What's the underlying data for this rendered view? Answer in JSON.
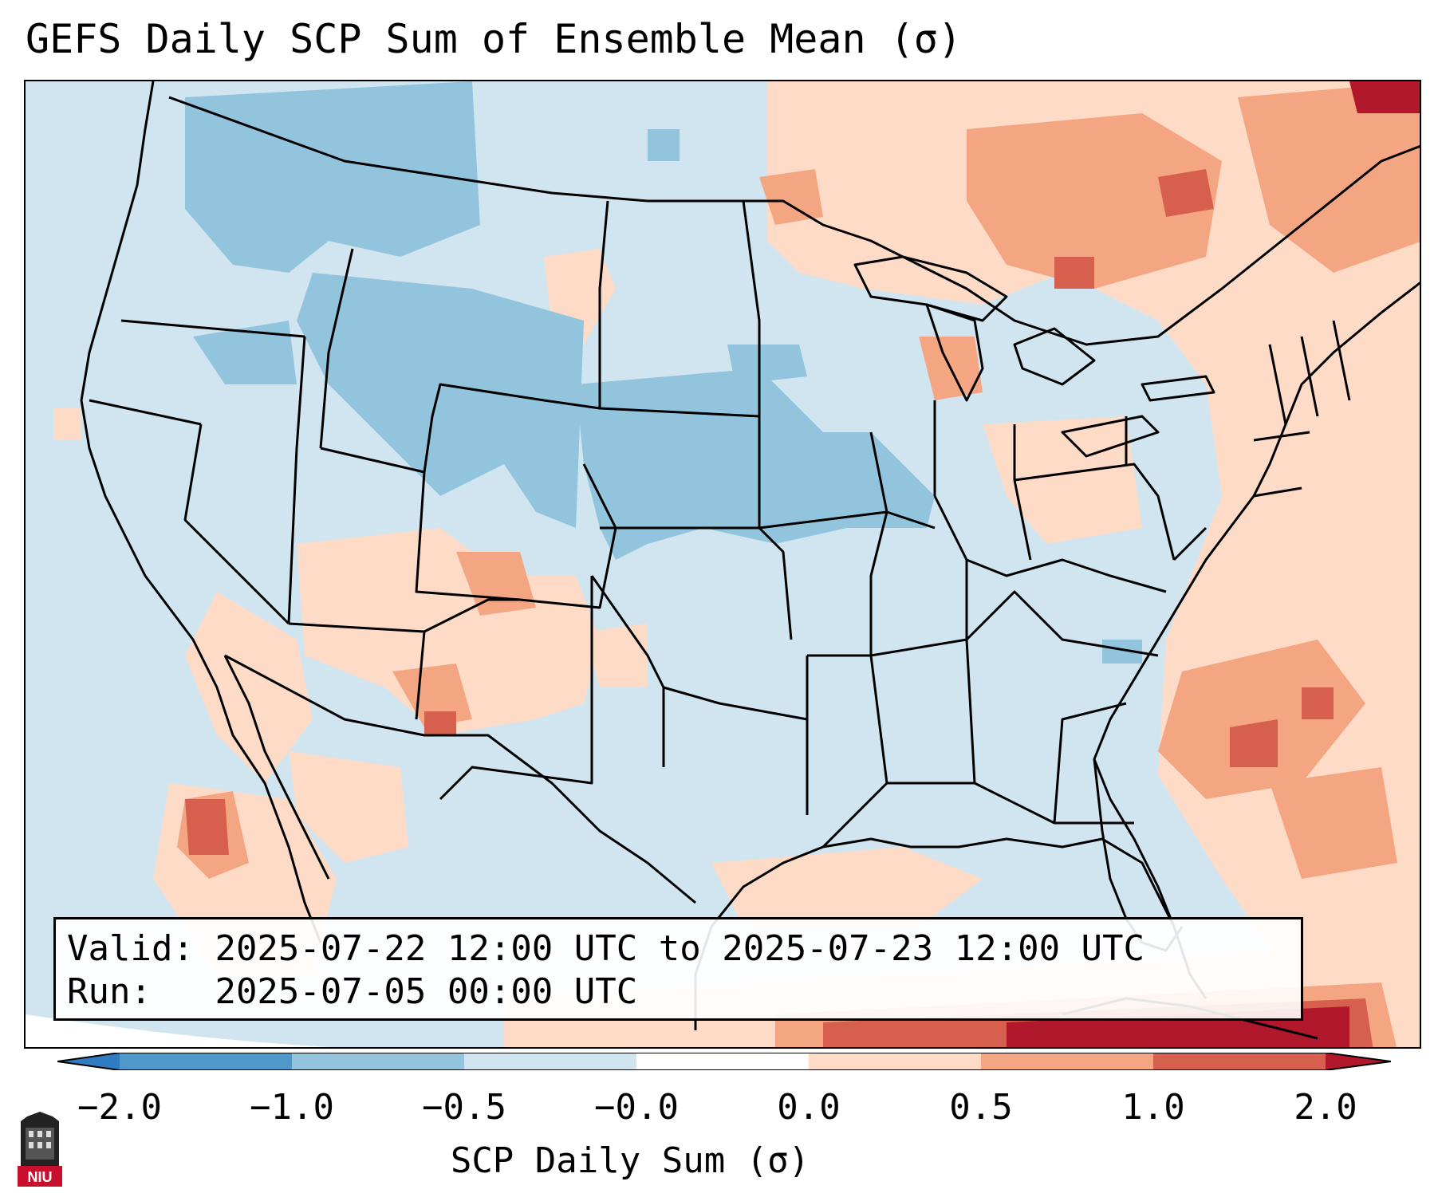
{
  "title": "GEFS Daily SCP Sum of Ensemble Mean (σ)",
  "info": {
    "valid_label": "Valid:",
    "valid_value": "2025-07-22 12:00 UTC to 2025-07-23 12:00 UTC",
    "run_label": "Run:",
    "run_value": "2025-07-05 00:00 UTC"
  },
  "colorbar": {
    "label": "SCP Daily Sum (σ)",
    "ticks": [
      "−2.0",
      "−1.0",
      "−0.5",
      "−0.0",
      "0.0",
      "0.5",
      "1.0",
      "2.0"
    ],
    "colors": {
      "below_min": "#2f7cc0",
      "bin_m2_m1": "#4f98ca",
      "bin_m1_m05": "#92c4de",
      "bin_m05_0": "#d1e5f0",
      "bin_0_0": "#ffffff",
      "bin_0_05": "#fddbc7",
      "bin_05_1": "#f4a582",
      "bin_1_2": "#d6604d",
      "above_max": "#b2182b"
    }
  },
  "map": {
    "region": "CONUS",
    "ocean_color": "#d1e5f0",
    "features": [
      "state-borders",
      "coastlines",
      "country-borders"
    ]
  },
  "logo": {
    "text": "NIU",
    "color": "#c8102e"
  }
}
